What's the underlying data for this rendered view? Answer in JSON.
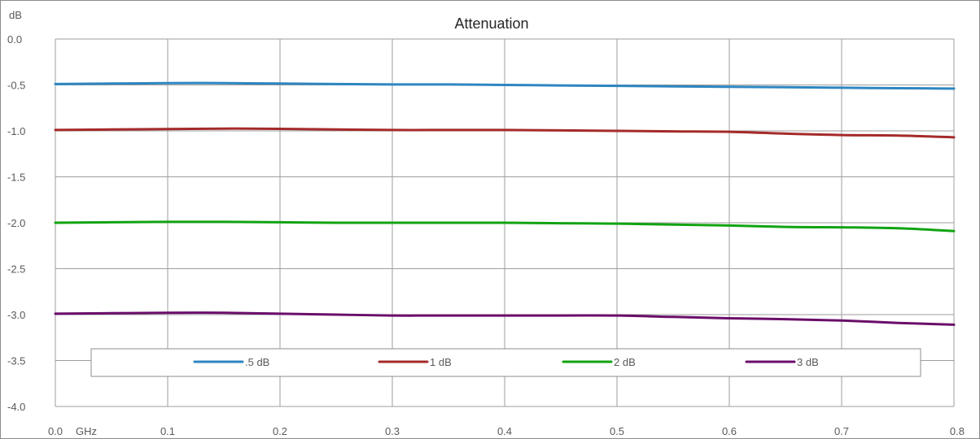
{
  "chart_data": {
    "type": "line",
    "title": "Attenuation",
    "ylabel": "dB",
    "xlabel": "GHz",
    "xlim": [
      0.0,
      0.8
    ],
    "ylim": [
      -4.0,
      0.0
    ],
    "x_ticks": [
      "0.0",
      "0.1",
      "0.2",
      "0.3",
      "0.4",
      "0.5",
      "0.6",
      "0.7",
      "0.8"
    ],
    "y_ticks": [
      "0.0",
      "-0.5",
      "-1.0",
      "-1.5",
      "-2.0",
      "-2.5",
      "-3.0",
      "-3.5",
      "-4.0"
    ],
    "grid": true,
    "legend_position": "bottom, inside plot",
    "x": [
      0.0,
      0.05,
      0.1,
      0.15,
      0.2,
      0.25,
      0.3,
      0.35,
      0.4,
      0.45,
      0.5,
      0.55,
      0.6,
      0.65,
      0.7,
      0.75,
      0.8
    ],
    "series": [
      {
        "name": ".5 dB",
        "color": "#2e86c1",
        "values": [
          -0.49,
          -0.485,
          -0.48,
          -0.48,
          -0.485,
          -0.49,
          -0.495,
          -0.495,
          -0.5,
          -0.505,
          -0.51,
          -0.515,
          -0.52,
          -0.525,
          -0.53,
          -0.535,
          -0.54
        ]
      },
      {
        "name": "1 dB",
        "color": "#a52a2a",
        "values": [
          -0.99,
          -0.985,
          -0.98,
          -0.975,
          -0.978,
          -0.985,
          -0.99,
          -0.99,
          -0.99,
          -0.995,
          -1.0,
          -1.005,
          -1.01,
          -1.03,
          -1.045,
          -1.05,
          -1.07
        ]
      },
      {
        "name": "2 dB",
        "color": "#12a312",
        "values": [
          -2.0,
          -1.995,
          -1.99,
          -1.99,
          -1.995,
          -2.0,
          -2.0,
          -2.0,
          -2.0,
          -2.005,
          -2.01,
          -2.02,
          -2.03,
          -2.045,
          -2.05,
          -2.06,
          -2.09
        ]
      },
      {
        "name": "3 dB",
        "color": "#6a0d6a",
        "values": [
          -2.99,
          -2.985,
          -2.98,
          -2.98,
          -2.99,
          -3.0,
          -3.01,
          -3.01,
          -3.01,
          -3.01,
          -3.01,
          -3.025,
          -3.04,
          -3.05,
          -3.065,
          -3.09,
          -3.11
        ]
      }
    ]
  }
}
